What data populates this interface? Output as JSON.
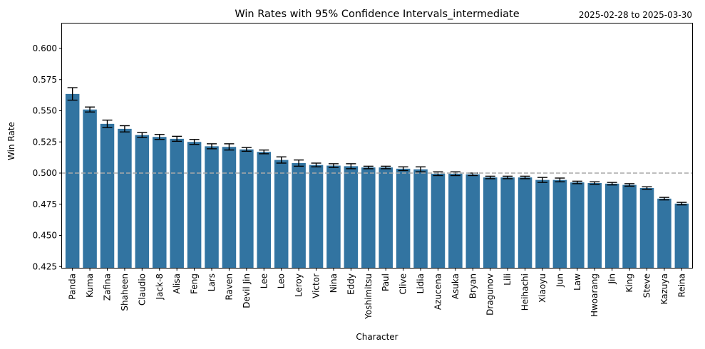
{
  "chart_data": {
    "type": "bar",
    "title": "Win Rates with 95% Confidence Intervals_intermediate",
    "date_range": "2025-02-28 to 2025-03-30",
    "xlabel": "Character",
    "ylabel": "Win Rate",
    "ylim": [
      0.424,
      0.62
    ],
    "yticks": [
      "0.425",
      "0.450",
      "0.475",
      "0.500",
      "0.525",
      "0.550",
      "0.575",
      "0.600"
    ],
    "reference_line": 0.5,
    "bar_color": "#3274a1",
    "reference_line_color": "#a9a9a9",
    "grid": false,
    "categories": [
      "Panda",
      "Kuma",
      "Zafina",
      "Shaheen",
      "Claudio",
      "Jack-8",
      "Alisa",
      "Feng",
      "Lars",
      "Raven",
      "Devil Jin",
      "Lee",
      "Leo",
      "Leroy",
      "Victor",
      "Nina",
      "Eddy",
      "Yoshimitsu",
      "Paul",
      "Clive",
      "Lidia",
      "Azucena",
      "Asuka",
      "Bryan",
      "Dragunov",
      "Lili",
      "Heihachi",
      "Xiaoyu",
      "Jun",
      "Law",
      "Hwoarang",
      "Jin",
      "King",
      "Steve",
      "Kazuya",
      "Reina"
    ],
    "values": [
      0.5635,
      0.551,
      0.5395,
      0.5355,
      0.5305,
      0.529,
      0.5275,
      0.525,
      0.5215,
      0.521,
      0.519,
      0.517,
      0.5105,
      0.508,
      0.5065,
      0.506,
      0.5055,
      0.5045,
      0.5045,
      0.5035,
      0.503,
      0.4995,
      0.4995,
      0.499,
      0.4965,
      0.4965,
      0.4965,
      0.4945,
      0.4945,
      0.4925,
      0.492,
      0.4915,
      0.4905,
      0.488,
      0.4795,
      0.4755
    ],
    "ci_low": [
      0.5585,
      0.549,
      0.5365,
      0.533,
      0.5285,
      0.527,
      0.5255,
      0.523,
      0.5195,
      0.5185,
      0.5175,
      0.5155,
      0.508,
      0.5055,
      0.505,
      0.5045,
      0.5035,
      0.5035,
      0.5035,
      0.502,
      0.501,
      0.498,
      0.498,
      0.498,
      0.4955,
      0.4955,
      0.4955,
      0.4925,
      0.493,
      0.4915,
      0.491,
      0.4905,
      0.4895,
      0.487,
      0.4785,
      0.4745
    ],
    "ci_high": [
      0.5685,
      0.553,
      0.5425,
      0.538,
      0.5325,
      0.531,
      0.5295,
      0.527,
      0.5235,
      0.5235,
      0.5205,
      0.5185,
      0.513,
      0.5105,
      0.508,
      0.5075,
      0.5075,
      0.5055,
      0.5055,
      0.505,
      0.505,
      0.501,
      0.501,
      0.5,
      0.4975,
      0.4975,
      0.4975,
      0.4965,
      0.496,
      0.4935,
      0.493,
      0.4925,
      0.4915,
      0.489,
      0.4805,
      0.4765
    ]
  }
}
